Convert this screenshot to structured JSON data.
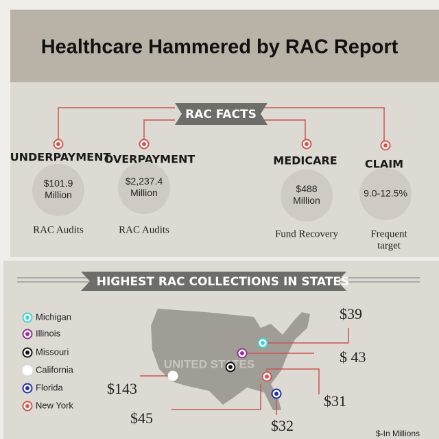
{
  "header": {
    "title": "Healthcare Hammered by RAC Report"
  },
  "facts": {
    "title": "RAC FACTS",
    "items": [
      {
        "heading": "UNDERPAYMENT",
        "amount": [
          "$101.9",
          "Million"
        ],
        "label": [
          "RAC Audits"
        ]
      },
      {
        "heading": "OVERPAYMENT",
        "amount": [
          "$2,237.4",
          "Million"
        ],
        "label": [
          "RAC Audits"
        ]
      },
      {
        "heading": "MEDICARE",
        "amount": [
          "$488",
          "Million"
        ],
        "label": [
          "Fund Recovery"
        ]
      },
      {
        "heading": "CLAIM",
        "amount": [
          "9.0-12.5%"
        ],
        "label": [
          "Frequent",
          "target"
        ]
      }
    ]
  },
  "states": {
    "title": "HIGHEST RAC COLLECTIONS IN STATES",
    "map_label": "UNITED STATES",
    "unit_note": "$-In Millions",
    "items": [
      {
        "name": "Michigan",
        "color": "#3fd4d0",
        "value": "$39"
      },
      {
        "name": "Illinois",
        "color": "#9b2f9b",
        "value": "$ 43"
      },
      {
        "name": "Missouri",
        "color": "#111111",
        "value": "$45"
      },
      {
        "name": "California",
        "color": "#ffffff",
        "value": "$143"
      },
      {
        "name": "Florida",
        "color": "#1f2fb0",
        "value": "$32"
      },
      {
        "name": "New York",
        "color": "#d9534f",
        "value": "$31"
      }
    ]
  }
}
